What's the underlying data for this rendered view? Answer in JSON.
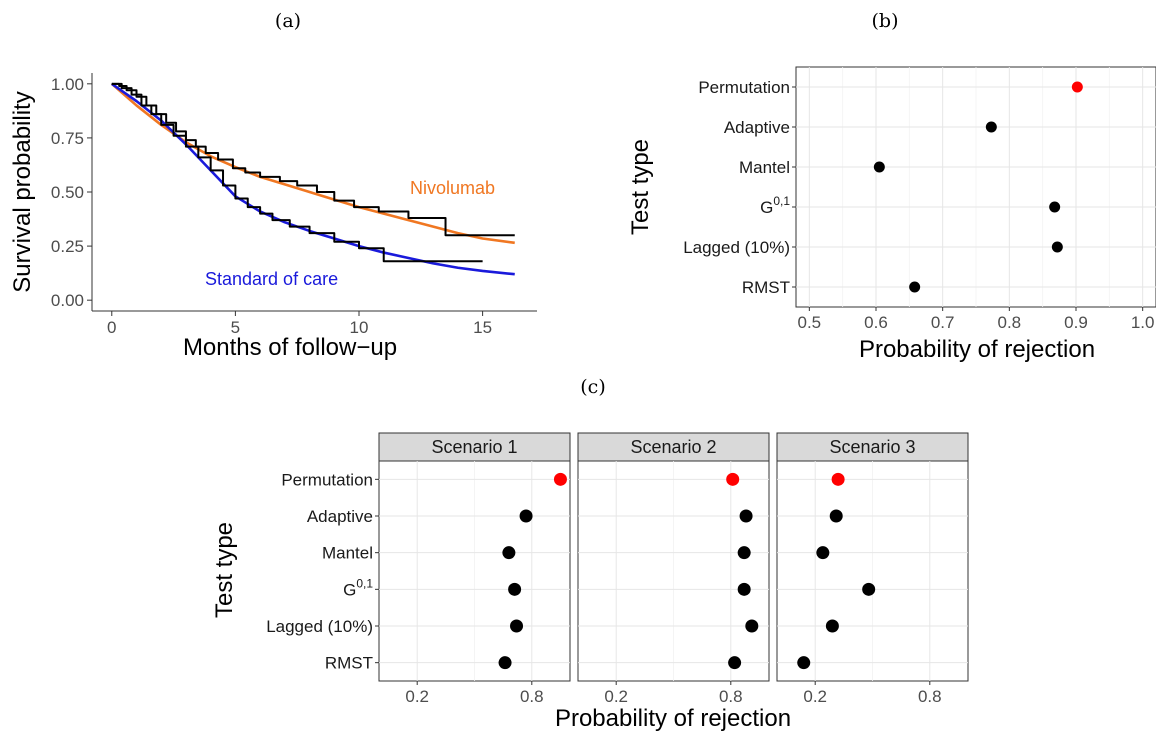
{
  "chart_data": [
    {
      "panel": "(a)",
      "type": "line",
      "xlabel": "Months of follow−up",
      "ylabel": "Survival probability",
      "xlim": [
        -0.8,
        17.2
      ],
      "ylim": [
        -0.05,
        1.05
      ],
      "xticks": [
        "0",
        "5",
        "10",
        "15"
      ],
      "yticks": [
        "0.00",
        "0.25",
        "0.50",
        "0.75",
        "1.00"
      ],
      "grid": false,
      "annotations": [
        {
          "text": "Nivolumab",
          "color": "#f07722"
        },
        {
          "text": "Standard of care",
          "color": "#1a1adb"
        }
      ],
      "series": [
        {
          "label": "Nivolumab",
          "kind": "fitted",
          "color": "#f07722",
          "x": [
            0,
            1,
            2,
            3,
            4,
            5,
            6,
            7,
            8,
            9,
            10,
            11,
            12,
            13,
            14,
            15,
            16.3
          ],
          "y": [
            1.0,
            0.9,
            0.81,
            0.73,
            0.665,
            0.615,
            0.57,
            0.535,
            0.5,
            0.465,
            0.43,
            0.4,
            0.37,
            0.34,
            0.31,
            0.285,
            0.265
          ]
        },
        {
          "label": "Standard of care",
          "kind": "fitted",
          "color": "#1a1adb",
          "x": [
            0,
            1,
            2,
            3,
            4,
            5,
            6,
            7,
            8,
            9,
            10,
            11,
            12,
            13,
            14,
            15,
            16.3
          ],
          "y": [
            1.0,
            0.92,
            0.83,
            0.72,
            0.6,
            0.48,
            0.41,
            0.36,
            0.32,
            0.285,
            0.25,
            0.22,
            0.195,
            0.17,
            0.15,
            0.135,
            0.12
          ]
        },
        {
          "kind": "km",
          "color": "#000000",
          "x": [
            0,
            0.3,
            0.6,
            1.0,
            1.4,
            1.8,
            2.2,
            2.6,
            3.0,
            3.4,
            3.8,
            4.3,
            4.9,
            5.4,
            6.0,
            6.8,
            7.5,
            8.3,
            9.0,
            9.8,
            10.8,
            12.0,
            13.5,
            16.3
          ],
          "y": [
            1.0,
            0.99,
            0.97,
            0.94,
            0.9,
            0.86,
            0.82,
            0.78,
            0.74,
            0.71,
            0.68,
            0.65,
            0.61,
            0.59,
            0.57,
            0.55,
            0.53,
            0.5,
            0.46,
            0.43,
            0.41,
            0.38,
            0.3,
            0.3
          ]
        },
        {
          "kind": "km",
          "color": "#000000",
          "x": [
            0,
            0.4,
            0.8,
            1.2,
            1.6,
            2.0,
            2.5,
            3.0,
            3.5,
            4.0,
            4.5,
            5.0,
            5.5,
            6.0,
            6.5,
            7.2,
            8.0,
            9.0,
            10.0,
            11.0,
            15.0
          ],
          "y": [
            1.0,
            0.98,
            0.95,
            0.9,
            0.86,
            0.81,
            0.76,
            0.71,
            0.66,
            0.6,
            0.53,
            0.47,
            0.43,
            0.4,
            0.37,
            0.34,
            0.31,
            0.27,
            0.24,
            0.18,
            0.18
          ]
        }
      ]
    },
    {
      "panel": "(b)",
      "type": "scatter",
      "xlabel": "Probability of rejection",
      "ylabel": "Test type",
      "xlim": [
        0.48,
        1.02
      ],
      "xticks": [
        0.5,
        0.6,
        0.7,
        0.8,
        0.9,
        1.0
      ],
      "xtick_labels": [
        "0.5",
        "0.6",
        "0.7",
        "0.8",
        "0.9",
        "1.0"
      ],
      "grid": true,
      "categories": [
        "Permutation",
        "Adaptive",
        "Mantel",
        "G",
        "Lagged (10%)",
        "RMST"
      ],
      "superscripts": [
        "",
        "",
        "",
        "0,1",
        "",
        ""
      ],
      "values": [
        0.902,
        0.773,
        0.605,
        0.868,
        0.872,
        0.658
      ],
      "colors": [
        "#ff0000",
        "#000000",
        "#000000",
        "#000000",
        "#000000",
        "#000000"
      ]
    },
    {
      "panel": "(c)",
      "type": "scatter",
      "xlabel": "Probability of rejection",
      "ylabel": "Test type",
      "xlim": [
        0.0,
        1.0
      ],
      "xticks": [
        0.2,
        0.8
      ],
      "xtick_labels": [
        "0.2",
        "0.8"
      ],
      "grid": true,
      "categories": [
        "Permutation",
        "Adaptive",
        "Mantel",
        "G",
        "Lagged (10%)",
        "RMST"
      ],
      "superscripts": [
        "",
        "",
        "",
        "0,1",
        "",
        ""
      ],
      "colors": [
        "#ff0000",
        "#000000",
        "#000000",
        "#000000",
        "#000000",
        "#000000"
      ],
      "facets": [
        {
          "strip": "Scenario 1",
          "values": [
            0.95,
            0.77,
            0.68,
            0.71,
            0.72,
            0.66
          ]
        },
        {
          "strip": "Scenario 2",
          "values": [
            0.81,
            0.88,
            0.87,
            0.87,
            0.91,
            0.82
          ]
        },
        {
          "strip": "Scenario 3",
          "values": [
            0.32,
            0.31,
            0.24,
            0.48,
            0.29,
            0.14
          ]
        }
      ]
    }
  ]
}
